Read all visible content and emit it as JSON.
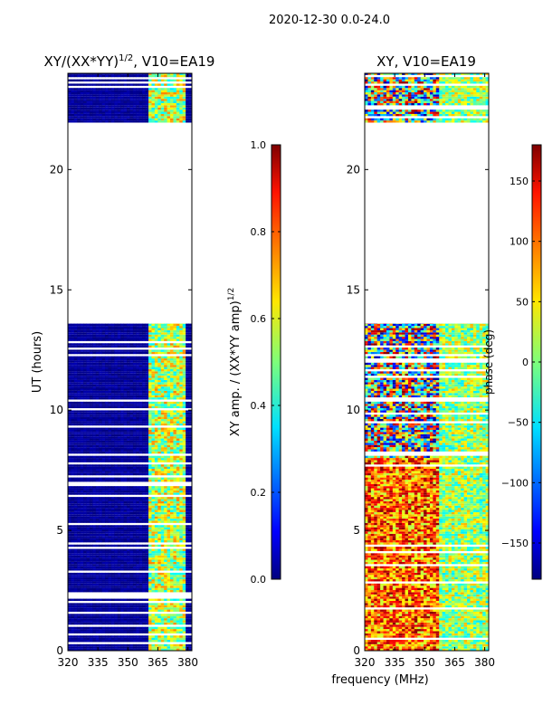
{
  "figure": {
    "suptitle": "2020-12-30 0.0-24.0",
    "shared_xlabel": "frequency (MHz)"
  },
  "chart_data": [
    {
      "type": "heatmap",
      "title": "XY/(XX*YY)",
      "title_exponent": "1/2",
      "title_suffix": ", V10=EA19",
      "xlabel": "frequency (MHz)",
      "ylabel": "UT (hours)",
      "xlim": [
        320,
        382
      ],
      "ylim": [
        0,
        24
      ],
      "xticks": [
        320,
        335,
        350,
        365,
        380
      ],
      "yticks": [
        0,
        5,
        10,
        15,
        20
      ],
      "data_hours": [
        [
          0,
          13.6
        ],
        [
          21.95,
          24.0
        ]
      ],
      "colorbar": {
        "label": "XY amp. / (XX*YY amp)",
        "label_exponent": "1/2",
        "range": [
          0.0,
          1.0
        ],
        "ticks": [
          "0.0",
          "0.2",
          "0.4",
          "0.6",
          "0.8",
          "1.0"
        ],
        "colormap": "jet"
      }
    },
    {
      "type": "heatmap",
      "title": "XY, V10=EA19",
      "xlabel": "frequency (MHz)",
      "ylabel": "",
      "xlim": [
        320,
        382
      ],
      "ylim": [
        0,
        24
      ],
      "xticks": [
        320,
        335,
        350,
        365,
        380
      ],
      "yticks": [
        0,
        5,
        10,
        15,
        20
      ],
      "data_hours": [
        [
          0,
          13.6
        ],
        [
          21.95,
          24.0
        ]
      ],
      "colorbar": {
        "label": "phase (deg)",
        "range": [
          -180,
          180
        ],
        "ticks": [
          "−150",
          "−100",
          "−50",
          "0",
          "50",
          "100",
          "150"
        ],
        "colormap": "jet"
      }
    }
  ]
}
